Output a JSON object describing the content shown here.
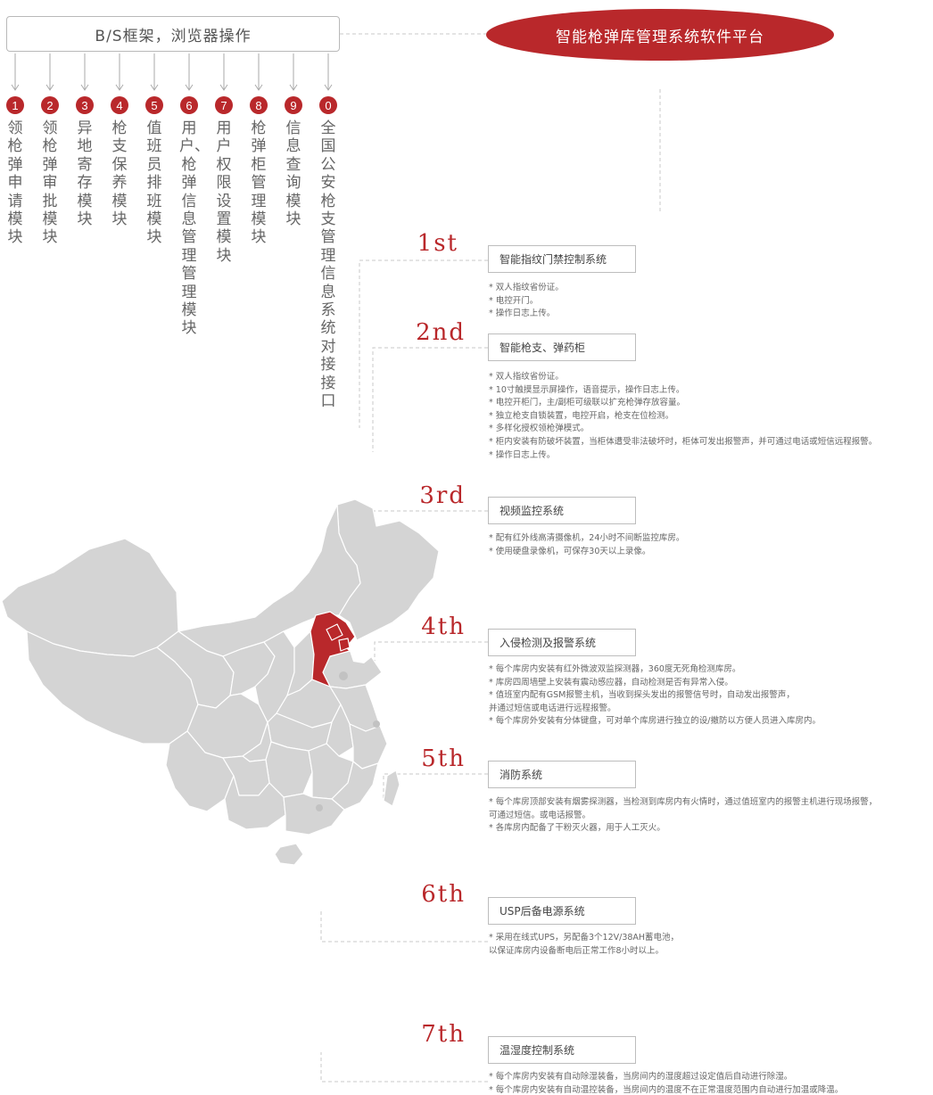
{
  "header": {
    "bs_label": "B/S框架，浏览器操作",
    "platform_title": "智能枪弹库管理系统软件平台"
  },
  "modules": [
    {
      "num": "1",
      "text": "领枪弹申请模块"
    },
    {
      "num": "2",
      "text": "领枪弹审批模块"
    },
    {
      "num": "3",
      "text": "异地寄存模块"
    },
    {
      "num": "4",
      "text": "枪支保养模块"
    },
    {
      "num": "5",
      "text": "值班员排班模块"
    },
    {
      "num": "6",
      "text": "用户、枪弹信息管理管理模块"
    },
    {
      "num": "7",
      "text": "用户权限设置模块"
    },
    {
      "num": "8",
      "text": "枪弹柜管理模块"
    },
    {
      "num": "9",
      "text": "信息查询模块"
    },
    {
      "num": "0",
      "text": "全国公安枪支管理信息系统对接接口"
    }
  ],
  "systems": [
    {
      "ordinal": "1st",
      "title": "智能指纹门禁控制系统",
      "bullets": [
        "* 双人指纹省份证。",
        "* 电控开门。",
        "* 操作日志上传。"
      ]
    },
    {
      "ordinal": "2nd",
      "title": "智能枪支、弹药柜",
      "bullets": [
        "* 双人指纹省份证。",
        "* 10寸触摸显示屏操作，语音提示，操作日志上传。",
        "* 电控开柜门，主/副柜可级联以扩充枪弹存放容量。",
        "* 独立枪支自锁装置，电控开启，枪支在位检测。",
        "* 多样化授权领枪弹模式。",
        "* 柜内安装有防破坏装置，当柜体遭受非法破坏时，柜体可发出报警声，并可通过电话或短信远程报警。",
        "* 操作日志上传。"
      ]
    },
    {
      "ordinal": "3rd",
      "title": "视频监控系统",
      "bullets": [
        "* 配有红外线高清摄像机，24小时不间断监控库房。",
        "* 使用硬盘录像机，可保存30天以上录像。"
      ]
    },
    {
      "ordinal": "4th",
      "title": "入侵检测及报警系统",
      "bullets": [
        "* 每个库房内安装有红外微波双监探测器，360度无死角检测库房。",
        "* 库房四周墙壁上安装有震动感应器，自动检测是否有异常入侵。",
        "* 值班室内配有GSM报警主机，当收到探头发出的报警信号时，自动发出报警声，",
        "   并通过短信或电话进行远程报警。",
        "* 每个库房外安装有分体键盘，可对单个库房进行独立的设/撤防以方便人员进入库房内。"
      ]
    },
    {
      "ordinal": "5th",
      "title": "消防系统",
      "bullets": [
        "* 每个库房顶部安装有烟雾探测器，当检测到库房内有火情时，通过值班室内的报警主机进行现场报警，",
        "   可通过短信。或电话报警。",
        "* 各库房内配备了干粉灭火器，用于人工灭火。"
      ]
    },
    {
      "ordinal": "6th",
      "title": "USP后备电源系统",
      "bullets": [
        "* 采用在线式UPS，另配备3个12V/38AH蓄电池，",
        "   以保证库房内设备断电后正常工作8小时以上。"
      ]
    },
    {
      "ordinal": "7th",
      "title": "温湿度控制系统",
      "bullets": [
        "* 每个库房内安装有自动除湿装备，当房间内的湿度超过设定值后自动进行除湿。",
        "* 每个库房内安装有自动温控装备，当房间内的温度不在正常温度范围内自动进行加温或降温。"
      ]
    }
  ],
  "colors": {
    "accent": "#b9282b",
    "map_fill": "#d4d4d4",
    "map_stroke": "#ffffff"
  }
}
